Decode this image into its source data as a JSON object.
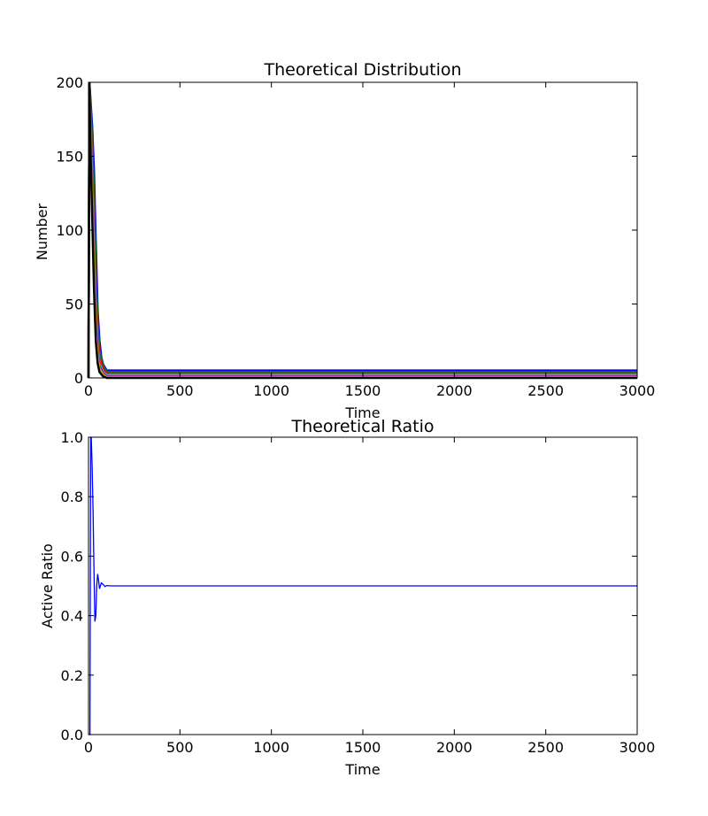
{
  "chart_data": [
    {
      "type": "line",
      "title": "Theoretical Distribution",
      "xlabel": "Time",
      "ylabel": "Number",
      "xlim": [
        0,
        3000
      ],
      "ylim": [
        0,
        200
      ],
      "xticks": [
        "0",
        "500",
        "1000",
        "1500",
        "2000",
        "2500",
        "3000"
      ],
      "yticks": [
        "0",
        "50",
        "100",
        "150",
        "200"
      ],
      "grid": false,
      "legend": "none",
      "description_of_marks": "many overlapping colored series (red, blue, green, cyan, magenta, yellow, black) that spike near t=0-100 then settle to low constant levels",
      "series_colors": [
        "#0000ff",
        "#008000",
        "#ff0000",
        "#00bfbf",
        "#bf00bf",
        "#bfbf00",
        "#000000"
      ],
      "series": [
        {
          "x": [
            0,
            5,
            10,
            20,
            30,
            40,
            50,
            60,
            70,
            80,
            90,
            100,
            3000
          ],
          "values": [
            0,
            200,
            190,
            170,
            140,
            90,
            45,
            25,
            14,
            9,
            7,
            5,
            5
          ]
        },
        {
          "x": [
            0,
            5,
            10,
            20,
            30,
            40,
            50,
            60,
            80,
            100,
            3000
          ],
          "values": [
            0,
            200,
            185,
            160,
            120,
            70,
            35,
            18,
            8,
            4,
            4
          ]
        },
        {
          "x": [
            0,
            5,
            10,
            20,
            30,
            40,
            50,
            60,
            80,
            100,
            3000
          ],
          "values": [
            0,
            200,
            180,
            150,
            100,
            55,
            28,
            14,
            6,
            3,
            3
          ]
        },
        {
          "x": [
            0,
            5,
            10,
            20,
            30,
            40,
            50,
            60,
            80,
            100,
            3000
          ],
          "values": [
            0,
            200,
            175,
            140,
            90,
            45,
            22,
            10,
            4,
            2,
            2
          ]
        },
        {
          "x": [
            0,
            5,
            10,
            20,
            30,
            40,
            50,
            60,
            80,
            100,
            3000
          ],
          "values": [
            0,
            200,
            170,
            130,
            80,
            38,
            18,
            8,
            3,
            1,
            1
          ]
        },
        {
          "x": [
            0,
            5,
            10,
            20,
            30,
            40,
            50,
            60,
            80,
            100,
            3000
          ],
          "values": [
            0,
            200,
            165,
            120,
            70,
            30,
            14,
            6,
            2,
            0.5,
            0.5
          ]
        },
        {
          "x": [
            0,
            5,
            10,
            20,
            30,
            40,
            50,
            60,
            80,
            100,
            3000
          ],
          "values": [
            0,
            200,
            160,
            110,
            60,
            25,
            10,
            4,
            1,
            0,
            0
          ]
        }
      ]
    },
    {
      "type": "line",
      "title": "Theoretical Ratio",
      "xlabel": "Time",
      "ylabel": "Active Ratio",
      "xlim": [
        0,
        3000
      ],
      "ylim": [
        0.0,
        1.0
      ],
      "xticks": [
        "0",
        "500",
        "1000",
        "1500",
        "2000",
        "2500",
        "3000"
      ],
      "yticks": [
        "0.0",
        "0.2",
        "0.4",
        "0.6",
        "0.8",
        "1.0"
      ],
      "grid": false,
      "legend": "none",
      "series_colors": [
        "#0000ff"
      ],
      "series": [
        {
          "x": [
            0,
            8,
            12,
            15,
            20,
            25,
            30,
            35,
            40,
            45,
            50,
            55,
            60,
            70,
            80,
            90,
            100,
            120,
            3000
          ],
          "values": [
            0.0,
            0.0,
            1.0,
            1.0,
            0.9,
            0.75,
            0.55,
            0.38,
            0.4,
            0.5,
            0.54,
            0.52,
            0.49,
            0.51,
            0.505,
            0.498,
            0.501,
            0.5,
            0.5
          ]
        }
      ]
    }
  ]
}
